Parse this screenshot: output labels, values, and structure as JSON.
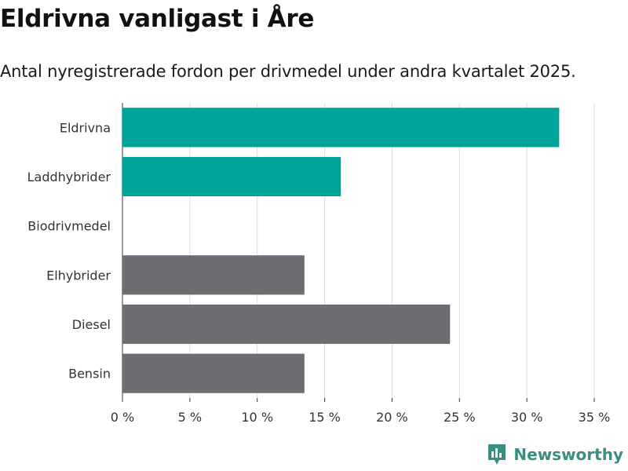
{
  "title": "Eldrivna vanligast i Åre",
  "subtitle": "Antal nyregistrerade fordon per drivmedel under andra kvartalet 2025.",
  "brand": {
    "name": "Newsworthy",
    "icon": "bar-chart-logo-icon"
  },
  "colors": {
    "highlight": "#00a398",
    "default": "#6e6d72",
    "brand": "#3a8d83"
  },
  "chart_data": {
    "type": "bar",
    "orientation": "horizontal",
    "categories": [
      "Eldrivna",
      "Laddhybrider",
      "Biodrivmedel",
      "Elhybrider",
      "Diesel",
      "Bensin"
    ],
    "values": [
      32.4,
      16.2,
      0,
      13.5,
      24.3,
      13.5
    ],
    "highlighted": [
      true,
      true,
      false,
      false,
      false,
      false
    ],
    "xlim": [
      0,
      35
    ],
    "xticks": [
      0,
      5,
      10,
      15,
      20,
      25,
      30,
      35
    ],
    "xtick_labels": [
      "0 %",
      "5 %",
      "10 %",
      "15 %",
      "20 %",
      "25 %",
      "30 %",
      "35 %"
    ],
    "xlabel": "",
    "ylabel": "",
    "grid": true
  }
}
